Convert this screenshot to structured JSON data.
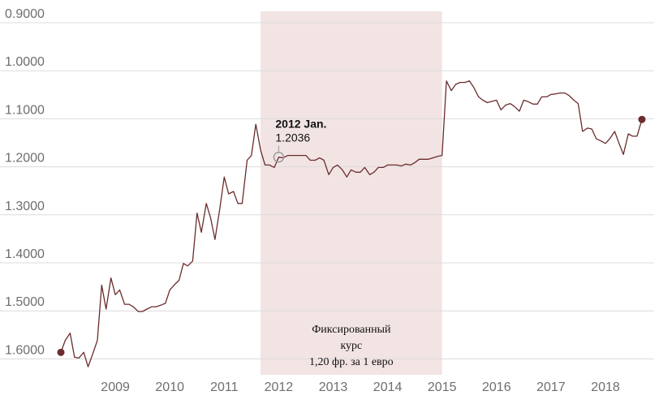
{
  "chart_data": {
    "type": "line",
    "y_inverted": true,
    "ylim": [
      0.9,
      1.6
    ],
    "y_ticks": [
      "0.9000",
      "1.0000",
      "1.1000",
      "1.2000",
      "1.3000",
      "1.4000",
      "1.5000",
      "1.6000"
    ],
    "x_ticks": [
      "2009",
      "2010",
      "2011",
      "2012",
      "2013",
      "2014",
      "2015",
      "2016",
      "2017",
      "2018"
    ],
    "grid": "horizontal",
    "line_color": "#6b2c2c",
    "band_color": "#f3e4e4",
    "shaded_period": {
      "from": "2011-09",
      "to": "2015-01",
      "label_lines": [
        "Фиксированный",
        "курс",
        "1,20 фр. за 1 евро"
      ]
    },
    "tooltip": {
      "date": "2012 Jan.",
      "value": "1.2036",
      "x": 2012.0,
      "y": 1.2036
    },
    "series": [
      {
        "points": [
          [
            2008.0,
            1.61
          ],
          [
            2008.08,
            1.585
          ],
          [
            2008.17,
            1.57
          ],
          [
            2008.25,
            1.62
          ],
          [
            2008.33,
            1.622
          ],
          [
            2008.42,
            1.61
          ],
          [
            2008.5,
            1.64
          ],
          [
            2008.58,
            1.615
          ],
          [
            2008.67,
            1.585
          ],
          [
            2008.75,
            1.47
          ],
          [
            2008.83,
            1.52
          ],
          [
            2008.92,
            1.455
          ],
          [
            2009.0,
            1.49
          ],
          [
            2009.08,
            1.48
          ],
          [
            2009.17,
            1.51
          ],
          [
            2009.25,
            1.51
          ],
          [
            2009.33,
            1.515
          ],
          [
            2009.42,
            1.525
          ],
          [
            2009.5,
            1.525
          ],
          [
            2009.58,
            1.52
          ],
          [
            2009.67,
            1.515
          ],
          [
            2009.75,
            1.515
          ],
          [
            2009.83,
            1.512
          ],
          [
            2009.92,
            1.508
          ],
          [
            2010.0,
            1.48
          ],
          [
            2010.08,
            1.47
          ],
          [
            2010.17,
            1.46
          ],
          [
            2010.25,
            1.425
          ],
          [
            2010.33,
            1.43
          ],
          [
            2010.42,
            1.42
          ],
          [
            2010.5,
            1.32
          ],
          [
            2010.58,
            1.36
          ],
          [
            2010.67,
            1.3
          ],
          [
            2010.75,
            1.33
          ],
          [
            2010.83,
            1.375
          ],
          [
            2010.92,
            1.31
          ],
          [
            2011.0,
            1.245
          ],
          [
            2011.08,
            1.28
          ],
          [
            2011.17,
            1.275
          ],
          [
            2011.25,
            1.3
          ],
          [
            2011.33,
            1.3
          ],
          [
            2011.42,
            1.21
          ],
          [
            2011.5,
            1.2
          ],
          [
            2011.58,
            1.135
          ],
          [
            2011.67,
            1.19
          ],
          [
            2011.75,
            1.22
          ],
          [
            2011.83,
            1.22
          ],
          [
            2011.92,
            1.225
          ],
          [
            2012.0,
            1.2036
          ],
          [
            2012.08,
            1.205
          ],
          [
            2012.17,
            1.2
          ],
          [
            2012.25,
            1.2
          ],
          [
            2012.33,
            1.2
          ],
          [
            2012.42,
            1.2
          ],
          [
            2012.5,
            1.2
          ],
          [
            2012.58,
            1.21
          ],
          [
            2012.67,
            1.21
          ],
          [
            2012.75,
            1.205
          ],
          [
            2012.83,
            1.21
          ],
          [
            2012.92,
            1.24
          ],
          [
            2013.0,
            1.225
          ],
          [
            2013.08,
            1.22
          ],
          [
            2013.17,
            1.23
          ],
          [
            2013.25,
            1.245
          ],
          [
            2013.33,
            1.23
          ],
          [
            2013.42,
            1.235
          ],
          [
            2013.5,
            1.235
          ],
          [
            2013.58,
            1.225
          ],
          [
            2013.67,
            1.24
          ],
          [
            2013.75,
            1.235
          ],
          [
            2013.83,
            1.225
          ],
          [
            2013.92,
            1.225
          ],
          [
            2014.0,
            1.22
          ],
          [
            2014.08,
            1.22
          ],
          [
            2014.17,
            1.22
          ],
          [
            2014.25,
            1.222
          ],
          [
            2014.33,
            1.218
          ],
          [
            2014.42,
            1.22
          ],
          [
            2014.5,
            1.215
          ],
          [
            2014.58,
            1.208
          ],
          [
            2014.67,
            1.208
          ],
          [
            2014.75,
            1.208
          ],
          [
            2014.83,
            1.205
          ],
          [
            2014.92,
            1.202
          ],
          [
            2015.0,
            1.2
          ],
          [
            2015.08,
            1.045
          ],
          [
            2015.17,
            1.065
          ],
          [
            2015.25,
            1.052
          ],
          [
            2015.33,
            1.048
          ],
          [
            2015.42,
            1.048
          ],
          [
            2015.5,
            1.045
          ],
          [
            2015.58,
            1.058
          ],
          [
            2015.67,
            1.078
          ],
          [
            2015.75,
            1.085
          ],
          [
            2015.83,
            1.09
          ],
          [
            2016.0,
            1.085
          ],
          [
            2016.08,
            1.105
          ],
          [
            2016.17,
            1.095
          ],
          [
            2016.25,
            1.092
          ],
          [
            2016.33,
            1.098
          ],
          [
            2016.42,
            1.108
          ],
          [
            2016.5,
            1.085
          ],
          [
            2016.58,
            1.088
          ],
          [
            2016.67,
            1.093
          ],
          [
            2016.75,
            1.093
          ],
          [
            2016.83,
            1.078
          ],
          [
            2016.92,
            1.078
          ],
          [
            2017.0,
            1.073
          ],
          [
            2017.08,
            1.072
          ],
          [
            2017.17,
            1.07
          ],
          [
            2017.25,
            1.07
          ],
          [
            2017.33,
            1.075
          ],
          [
            2017.42,
            1.085
          ],
          [
            2017.5,
            1.092
          ],
          [
            2017.58,
            1.15
          ],
          [
            2017.67,
            1.143
          ],
          [
            2017.75,
            1.145
          ],
          [
            2017.83,
            1.165
          ],
          [
            2017.92,
            1.17
          ],
          [
            2018.0,
            1.175
          ],
          [
            2018.08,
            1.165
          ],
          [
            2018.17,
            1.15
          ],
          [
            2018.25,
            1.175
          ],
          [
            2018.33,
            1.198
          ],
          [
            2018.42,
            1.155
          ],
          [
            2018.5,
            1.16
          ],
          [
            2018.58,
            1.16
          ],
          [
            2018.67,
            1.125
          ]
        ]
      }
    ]
  }
}
